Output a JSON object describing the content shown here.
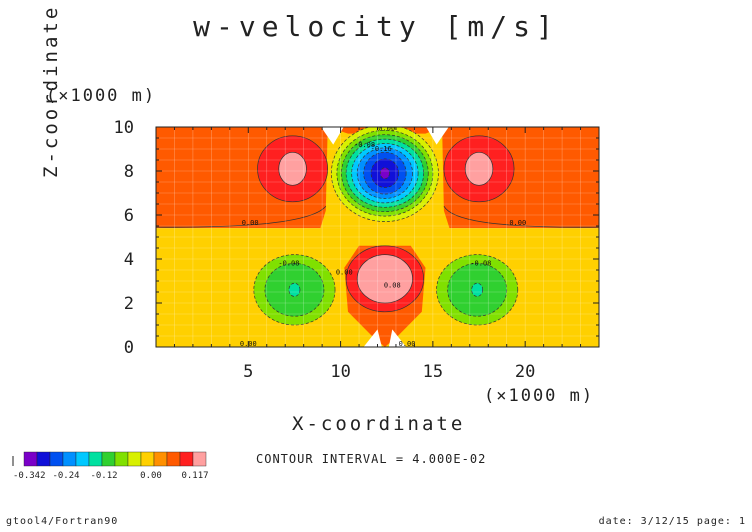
{
  "chart_data": {
    "type": "heatmap",
    "title": "w-velocity [m/s]",
    "xlabel": "X-coordinate",
    "ylabel": "Z-coordinate",
    "x_unit_label": "(×1000 m)",
    "y_unit_label": "(×1000 m)",
    "xlim": [
      0,
      24
    ],
    "ylim": [
      0,
      10
    ],
    "xticks": [
      5,
      10,
      15,
      20
    ],
    "yticks": [
      0,
      2,
      4,
      6,
      8,
      10
    ],
    "xtick_labels": [
      "5",
      "10",
      "15",
      "20"
    ],
    "ytick_labels": [
      "0",
      "2",
      "4",
      "6",
      "8",
      "10"
    ],
    "contour_interval_text": "CONTOUR INTERVAL = 4.000E-02",
    "contour_labels": [
      "0.00",
      "-0.08",
      "-0.16",
      "0.00",
      "0.00",
      "-0.08",
      "0.08",
      "0.00",
      "0.00",
      "-0.08",
      "0.00"
    ],
    "colorbar": {
      "colors": [
        "#7a00c8",
        "#1010d8",
        "#0050f0",
        "#0090ff",
        "#00c8ff",
        "#00e0a0",
        "#30d030",
        "#80e000",
        "#d8f000",
        "#ffd000",
        "#ff9000",
        "#ff5a00",
        "#ff2020",
        "#ffa0a0"
      ],
      "tick_labels": [
        "-0.342",
        "-0.24",
        "-0.12",
        "0.00",
        "0.117"
      ]
    },
    "features": [
      {
        "label": "downdraft core",
        "x": 12.4,
        "z": 7.9,
        "w_min": -0.342
      },
      {
        "label": "updraft core",
        "x": 12.4,
        "z": 3.1,
        "w_max": 0.117
      },
      {
        "label": "upper-left updraft",
        "x": 7.4,
        "z": 8.1
      },
      {
        "label": "upper-right updraft",
        "x": 17.5,
        "z": 8.1
      },
      {
        "label": "lower-left downdraft",
        "x": 7.5,
        "z": 2.6
      },
      {
        "label": "lower-right downdraft",
        "x": 17.4,
        "z": 2.6
      }
    ]
  },
  "footer": {
    "left": "gtool4/Fortran90",
    "right": "date: 3/12/15 page: 1"
  },
  "colors": {
    "background_upper": "#ff5a00",
    "background_lower": "#ffd000",
    "axis": "#222222"
  }
}
